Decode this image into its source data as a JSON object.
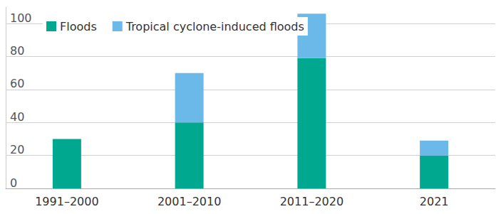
{
  "chart_data": {
    "type": "bar",
    "stacked": true,
    "categories": [
      "1991–2000",
      "2001–2010",
      "2011–2020",
      "2021"
    ],
    "series": [
      {
        "name": "Floods",
        "color": "#00a88f",
        "values": [
          30,
          40,
          79,
          20
        ]
      },
      {
        "name": "Tropical cyclone-induced floods",
        "color": "#6bb9e8",
        "values": [
          0,
          30,
          27,
          9
        ]
      }
    ],
    "ylim": [
      0,
      110
    ],
    "yticks": [
      0,
      20,
      40,
      60,
      80,
      100
    ],
    "grid": true,
    "legend": "upper left"
  }
}
